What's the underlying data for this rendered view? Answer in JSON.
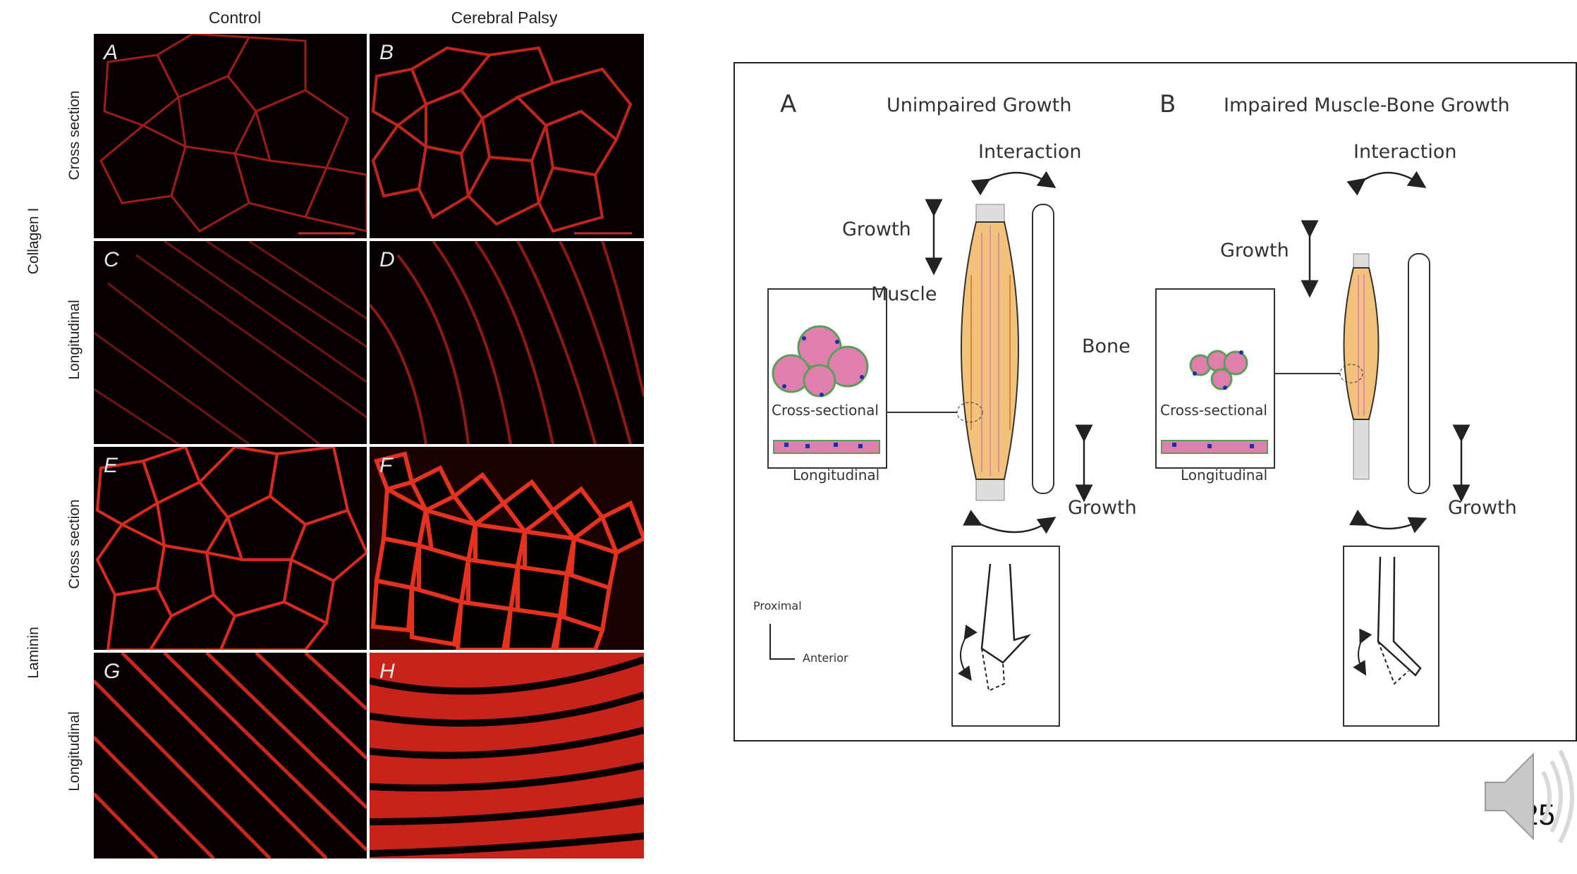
{
  "micrographs": {
    "columns": [
      "Control",
      "Cerebral Palsy"
    ],
    "stains": [
      {
        "label": "Collagen I",
        "rows": [
          "Cross section",
          "Longitudinal"
        ]
      },
      {
        "label": "Laminin",
        "rows": [
          "Cross section",
          "Longitudinal"
        ]
      }
    ],
    "panels": [
      "A",
      "B",
      "C",
      "D",
      "E",
      "F",
      "G",
      "H"
    ],
    "stain_color": "#e0261b"
  },
  "diagram": {
    "A": {
      "letter": "A",
      "title": "Unimpaired Growth"
    },
    "B": {
      "letter": "B",
      "title": "Impaired Muscle-Bone Growth"
    },
    "interaction": "Interaction",
    "growth": "Growth",
    "muscle": "Muscle",
    "bone": "Bone",
    "cross_sectional": "Cross-sectional",
    "longitudinal": "Longitudinal",
    "proximal": "Proximal",
    "anterior": "Anterior",
    "colors": {
      "muscle_fill": "#f3c27a",
      "fiber_fill": "#e07fae",
      "fiber_border": "#5a9e5a",
      "nucleus": "#1b2fa8"
    }
  },
  "slide": {
    "number": "25",
    "speaker_icon": "speaker-icon"
  }
}
